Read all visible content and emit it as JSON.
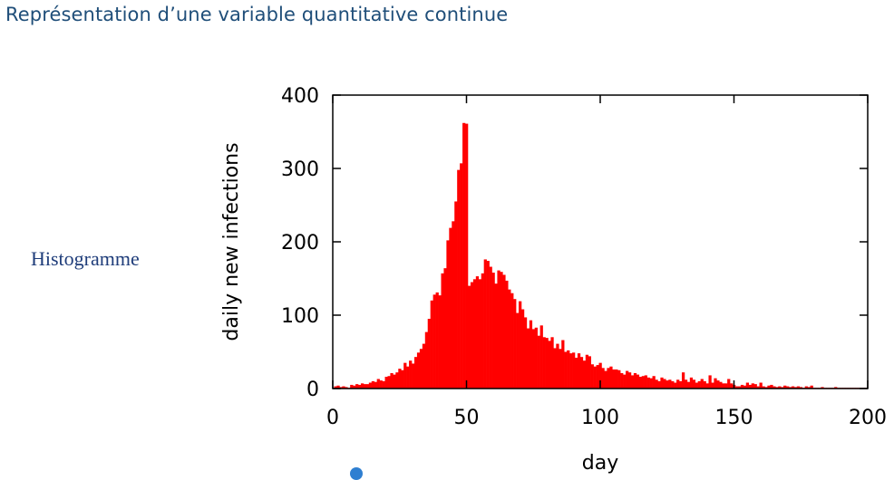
{
  "page": {
    "title": "Représentation d’une variable quantitative continue",
    "side_label": "Histogramme",
    "accent_color": "#1f4e79",
    "side_label_color": "#1f3d7a"
  },
  "chart_data": {
    "type": "bar",
    "xlabel": "day",
    "ylabel": "daily new infections",
    "xlim": [
      0,
      200
    ],
    "ylim": [
      0,
      400
    ],
    "xticks": [
      "0",
      "50",
      "100",
      "150",
      "200"
    ],
    "yticks": [
      "0",
      "100",
      "200",
      "300",
      "400"
    ],
    "bar_color": "#ff0000",
    "grid": false,
    "series": [
      {
        "x": [
          1,
          2,
          3,
          4,
          5,
          6,
          7,
          8,
          9,
          10,
          11,
          12,
          13,
          14,
          15,
          16,
          17,
          18,
          19,
          20,
          21,
          22,
          23,
          24,
          25,
          26,
          27,
          28,
          29,
          30,
          31,
          32,
          33,
          34,
          35,
          36,
          37,
          38,
          39,
          40,
          41,
          42,
          43,
          44,
          45,
          46,
          47,
          48,
          49,
          50,
          51,
          52,
          53,
          54,
          55,
          56,
          57,
          58,
          59,
          60,
          61,
          62,
          63,
          64,
          65,
          66,
          67,
          68,
          69,
          70,
          71,
          72,
          73,
          74,
          75,
          76,
          77,
          78,
          79,
          80,
          81,
          82,
          83,
          84,
          85,
          86,
          87,
          88,
          89,
          90,
          91,
          92,
          93,
          94,
          95,
          96,
          97,
          98,
          99,
          100,
          101,
          102,
          103,
          104,
          105,
          106,
          107,
          108,
          109,
          110,
          111,
          112,
          113,
          114,
          115,
          116,
          117,
          118,
          119,
          120,
          121,
          122,
          123,
          124,
          125,
          126,
          127,
          128,
          129,
          130,
          131,
          132,
          133,
          134,
          135,
          136,
          137,
          138,
          139,
          140,
          141,
          142,
          143,
          144,
          145,
          146,
          147,
          148,
          149,
          150,
          151,
          152,
          153,
          154,
          155,
          156,
          157,
          158,
          159,
          160,
          161,
          162,
          163,
          164,
          165,
          166,
          167,
          168,
          169,
          170,
          171,
          172,
          173,
          174,
          175,
          176,
          177,
          178,
          179,
          180,
          181,
          182,
          183,
          184,
          185,
          186,
          187,
          188,
          189,
          190,
          191,
          192,
          193,
          194,
          195,
          196,
          197,
          198,
          199
        ],
        "values": [
          3,
          4,
          2,
          3,
          2,
          1,
          5,
          4,
          6,
          5,
          7,
          6,
          6,
          8,
          10,
          9,
          13,
          11,
          10,
          16,
          17,
          21,
          19,
          22,
          27,
          25,
          35,
          30,
          38,
          34,
          43,
          49,
          54,
          61,
          77,
          95,
          120,
          128,
          131,
          127,
          157,
          164,
          202,
          219,
          228,
          255,
          298,
          307,
          362,
          361,
          140,
          145,
          149,
          153,
          149,
          157,
          176,
          174,
          166,
          158,
          143,
          161,
          159,
          155,
          147,
          135,
          130,
          122,
          103,
          119,
          108,
          97,
          82,
          93,
          81,
          83,
          72,
          86,
          70,
          69,
          65,
          70,
          55,
          61,
          54,
          66,
          50,
          52,
          48,
          49,
          42,
          48,
          43,
          38,
          46,
          44,
          33,
          30,
          32,
          35,
          28,
          24,
          28,
          30,
          26,
          26,
          25,
          21,
          19,
          24,
          22,
          18,
          21,
          19,
          16,
          17,
          18,
          15,
          14,
          17,
          12,
          10,
          15,
          13,
          11,
          12,
          10,
          8,
          12,
          10,
          22,
          12,
          9,
          15,
          12,
          8,
          10,
          13,
          10,
          7,
          18,
          8,
          14,
          11,
          9,
          7,
          7,
          13,
          7,
          5,
          3,
          3,
          5,
          4,
          8,
          5,
          7,
          6,
          3,
          8,
          3,
          2,
          4,
          5,
          3,
          2,
          3,
          2,
          4,
          3,
          2,
          3,
          2,
          3,
          2,
          1,
          3,
          2,
          4,
          1,
          1,
          1,
          2,
          1,
          1,
          1,
          1,
          2,
          1,
          1,
          1,
          1,
          1,
          1,
          1,
          1,
          1,
          1,
          1
        ]
      }
    ]
  }
}
